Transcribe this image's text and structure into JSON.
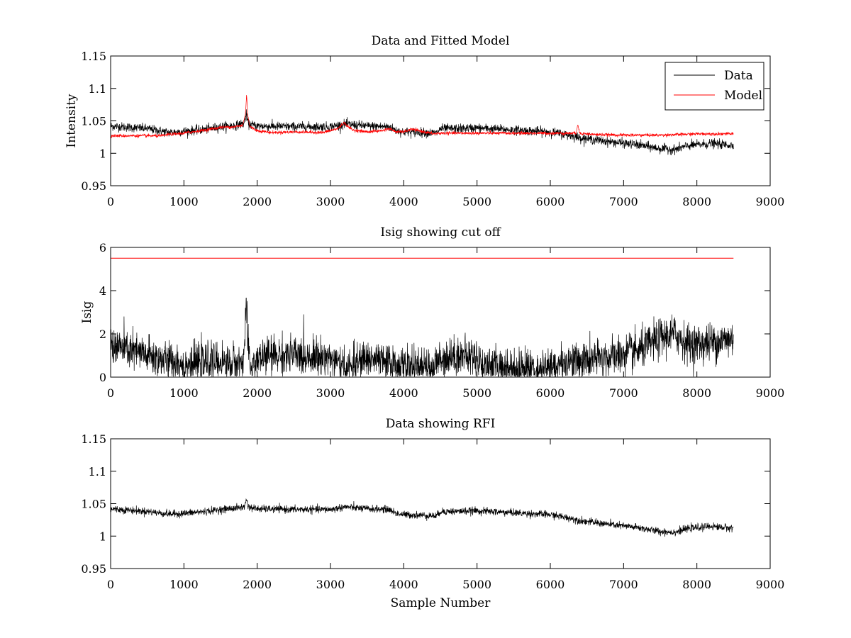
{
  "chart_data": [
    {
      "type": "line",
      "title": "Data and Fitted Model",
      "xlabel": "",
      "ylabel": "Intensity",
      "xlim": [
        0,
        9000
      ],
      "ylim": [
        0.95,
        1.15
      ],
      "xticks": [
        0,
        1000,
        2000,
        3000,
        4000,
        5000,
        6000,
        7000,
        8000,
        9000
      ],
      "yticks": [
        0.95,
        1,
        1.05,
        1.1,
        1.15
      ],
      "ytick_labels": [
        "0.95",
        "1",
        "1.05",
        "1.1",
        "1.15"
      ],
      "grid": false,
      "legend": "top-right",
      "series": [
        {
          "name": "Data",
          "color": "#000000",
          "noise": 0.0035,
          "points": [
            [
              0,
              1.042
            ],
            [
              500,
              1.038
            ],
            [
              800,
              1.032
            ],
            [
              1000,
              1.034
            ],
            [
              1300,
              1.037
            ],
            [
              1500,
              1.041
            ],
            [
              1700,
              1.043
            ],
            [
              1820,
              1.046
            ],
            [
              1850,
              1.06
            ],
            [
              1880,
              1.045
            ],
            [
              2000,
              1.042
            ],
            [
              2500,
              1.041
            ],
            [
              3000,
              1.041
            ],
            [
              3200,
              1.045
            ],
            [
              3500,
              1.042
            ],
            [
              3800,
              1.041
            ],
            [
              3900,
              1.035
            ],
            [
              4000,
              1.033
            ],
            [
              4300,
              1.032
            ],
            [
              4450,
              1.031
            ],
            [
              4500,
              1.038
            ],
            [
              4700,
              1.038
            ],
            [
              5000,
              1.039
            ],
            [
              5500,
              1.036
            ],
            [
              6000,
              1.033
            ],
            [
              6300,
              1.027
            ],
            [
              6400,
              1.024
            ],
            [
              6800,
              1.018
            ],
            [
              7200,
              1.013
            ],
            [
              7500,
              1.007
            ],
            [
              7700,
              1.006
            ],
            [
              7900,
              1.012
            ],
            [
              8200,
              1.015
            ],
            [
              8500,
              1.012
            ]
          ]
        },
        {
          "name": "Model",
          "color": "#ff0000",
          "noise": 0.0012,
          "points": [
            [
              0,
              1.027
            ],
            [
              700,
              1.027
            ],
            [
              800,
              1.029
            ],
            [
              1000,
              1.031
            ],
            [
              1300,
              1.036
            ],
            [
              1500,
              1.04
            ],
            [
              1700,
              1.041
            ],
            [
              1800,
              1.043
            ],
            [
              1840,
              1.06
            ],
            [
              1855,
              1.092
            ],
            [
              1870,
              1.06
            ],
            [
              1900,
              1.041
            ],
            [
              2000,
              1.035
            ],
            [
              2200,
              1.032
            ],
            [
              2500,
              1.033
            ],
            [
              2900,
              1.032
            ],
            [
              3100,
              1.038
            ],
            [
              3180,
              1.047
            ],
            [
              3300,
              1.036
            ],
            [
              3500,
              1.033
            ],
            [
              3700,
              1.035
            ],
            [
              3800,
              1.038
            ],
            [
              3900,
              1.033
            ],
            [
              4000,
              1.033
            ],
            [
              4100,
              1.037
            ],
            [
              4200,
              1.035
            ],
            [
              4400,
              1.03
            ],
            [
              4500,
              1.031
            ],
            [
              5000,
              1.031
            ],
            [
              5500,
              1.031
            ],
            [
              6000,
              1.031
            ],
            [
              6350,
              1.031
            ],
            [
              6375,
              1.045
            ],
            [
              6400,
              1.031
            ],
            [
              6600,
              1.029
            ],
            [
              7000,
              1.028
            ],
            [
              7500,
              1.028
            ],
            [
              7800,
              1.029
            ],
            [
              8000,
              1.03
            ],
            [
              8500,
              1.03
            ]
          ]
        }
      ]
    },
    {
      "type": "line",
      "title": "Isig showing cut off",
      "xlabel": "",
      "ylabel": "Isig",
      "xlim": [
        0,
        9000
      ],
      "ylim": [
        0,
        6
      ],
      "xticks": [
        0,
        1000,
        2000,
        3000,
        4000,
        5000,
        6000,
        7000,
        8000,
        9000
      ],
      "yticks": [
        0,
        2,
        4,
        6
      ],
      "ytick_labels": [
        "0",
        "2",
        "4",
        "6"
      ],
      "grid": false,
      "legend": "none",
      "series": [
        {
          "color": "#000000",
          "noise": 0.45,
          "floor": 0,
          "points": [
            [
              0,
              1.5
            ],
            [
              300,
              1.2
            ],
            [
              600,
              0.9
            ],
            [
              1000,
              0.6
            ],
            [
              1500,
              0.7
            ],
            [
              1800,
              0.6
            ],
            [
              1830,
              1.5
            ],
            [
              1850,
              3.7
            ],
            [
              1870,
              1.5
            ],
            [
              1900,
              0.5
            ],
            [
              2100,
              1.0
            ],
            [
              2500,
              1.0
            ],
            [
              3000,
              0.9
            ],
            [
              3200,
              0.3
            ],
            [
              3500,
              0.9
            ],
            [
              3800,
              0.6
            ],
            [
              4000,
              0.5
            ],
            [
              4400,
              0.3
            ],
            [
              4500,
              0.9
            ],
            [
              4800,
              1.0
            ],
            [
              5000,
              0.9
            ],
            [
              5100,
              0.5
            ],
            [
              5500,
              0.4
            ],
            [
              6000,
              0.4
            ],
            [
              6300,
              0.8
            ],
            [
              6400,
              0.7
            ],
            [
              6800,
              0.9
            ],
            [
              7200,
              1.2
            ],
            [
              7500,
              1.8
            ],
            [
              7700,
              2.0
            ],
            [
              7900,
              1.5
            ],
            [
              8200,
              1.6
            ],
            [
              8500,
              1.8
            ]
          ]
        },
        {
          "color": "#ff0000",
          "noise": 0,
          "points": [
            [
              0,
              5.5
            ],
            [
              8500,
              5.5
            ]
          ]
        }
      ]
    },
    {
      "type": "line",
      "title": "Data showing RFI",
      "xlabel": "Sample Number",
      "ylabel": "",
      "xlim": [
        0,
        9000
      ],
      "ylim": [
        0.95,
        1.15
      ],
      "xticks": [
        0,
        1000,
        2000,
        3000,
        4000,
        5000,
        6000,
        7000,
        8000,
        9000
      ],
      "yticks": [
        0.95,
        1,
        1.05,
        1.1,
        1.15
      ],
      "ytick_labels": [
        "0.95",
        "1",
        "1.05",
        "1.1",
        "1.15"
      ],
      "grid": false,
      "legend": "none",
      "series": [
        {
          "color": "#000000",
          "noise": 0.0028,
          "points": [
            [
              0,
              1.042
            ],
            [
              500,
              1.038
            ],
            [
              800,
              1.034
            ],
            [
              1000,
              1.035
            ],
            [
              1300,
              1.038
            ],
            [
              1500,
              1.041
            ],
            [
              1700,
              1.043
            ],
            [
              1830,
              1.045
            ],
            [
              1850,
              1.058
            ],
            [
              1880,
              1.045
            ],
            [
              2000,
              1.042
            ],
            [
              2500,
              1.041
            ],
            [
              3000,
              1.041
            ],
            [
              3200,
              1.045
            ],
            [
              3500,
              1.042
            ],
            [
              3800,
              1.041
            ],
            [
              3900,
              1.035
            ],
            [
              4000,
              1.033
            ],
            [
              4300,
              1.032
            ],
            [
              4450,
              1.031
            ],
            [
              4500,
              1.038
            ],
            [
              4700,
              1.038
            ],
            [
              5000,
              1.039
            ],
            [
              5500,
              1.036
            ],
            [
              6000,
              1.033
            ],
            [
              6300,
              1.027
            ],
            [
              6400,
              1.024
            ],
            [
              6800,
              1.018
            ],
            [
              7200,
              1.013
            ],
            [
              7500,
              1.007
            ],
            [
              7700,
              1.006
            ],
            [
              7900,
              1.012
            ],
            [
              8200,
              1.015
            ],
            [
              8500,
              1.012
            ]
          ]
        }
      ]
    }
  ]
}
